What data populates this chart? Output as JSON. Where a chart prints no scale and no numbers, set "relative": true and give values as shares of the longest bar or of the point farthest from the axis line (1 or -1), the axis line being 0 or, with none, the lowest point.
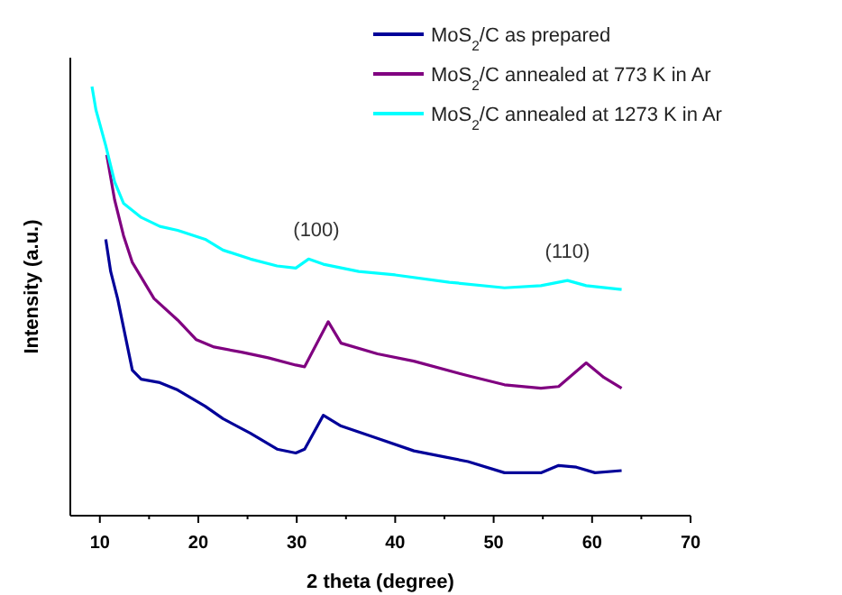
{
  "chart_data": {
    "type": "line",
    "relative": true,
    "xlabel": "2 theta (degree)",
    "ylabel": "Intensity (a.u.)",
    "xlim": [
      7,
      70
    ],
    "xticks": [
      10,
      20,
      30,
      40,
      50,
      60,
      70
    ],
    "legend": "top right",
    "marker": "none",
    "line_style": "solid",
    "tick_labels": "x",
    "annotations": [
      {
        "text": "(100)",
        "x": 32,
        "y": 0.6
      },
      {
        "text": "(110)",
        "x": 57.5,
        "y": 0.55
      }
    ],
    "series": [
      {
        "name": "MoS$_{2}$/C as prepared",
        "color": "#000099",
        "x": [
          10.6,
          11.1,
          11.8,
          13.3,
          14.2,
          16.1,
          17.9,
          20.7,
          22.5,
          25.3,
          28.0,
          29.9,
          30.8,
          32.7,
          34.5,
          38.2,
          41.9,
          47.4,
          51.1,
          54.8,
          56.6,
          58.4,
          60.3,
          63.0
        ],
        "values": [
          0.644,
          0.569,
          0.506,
          0.339,
          0.318,
          0.31,
          0.293,
          0.255,
          0.226,
          0.192,
          0.155,
          0.146,
          0.155,
          0.234,
          0.209,
          0.18,
          0.151,
          0.126,
          0.1,
          0.1,
          0.117,
          0.113,
          0.1,
          0.105
        ]
      },
      {
        "name": "MoS$_{2}$/C annealed at 773 K in Ar",
        "color": "#800080",
        "x": [
          10.7,
          11.5,
          12.4,
          13.3,
          15.5,
          17.9,
          19.8,
          21.6,
          24.4,
          27.1,
          29.9,
          30.8,
          33.2,
          34.5,
          38.2,
          41.9,
          47.4,
          51.1,
          54.8,
          56.6,
          59.4,
          61.2,
          63.0
        ],
        "values": [
          0.841,
          0.736,
          0.653,
          0.59,
          0.506,
          0.456,
          0.41,
          0.393,
          0.381,
          0.368,
          0.351,
          0.347,
          0.452,
          0.402,
          0.377,
          0.36,
          0.326,
          0.305,
          0.297,
          0.301,
          0.356,
          0.322,
          0.297
        ]
      },
      {
        "name": "MoS$_{2}$/C annealed at 1273 K in Ar",
        "color": "#00ffff",
        "x": [
          9.2,
          9.6,
          10.6,
          11.5,
          12.4,
          14.2,
          16.1,
          17.9,
          20.7,
          22.5,
          25.3,
          28.0,
          29.9,
          31.2,
          32.7,
          36.3,
          40.0,
          45.5,
          51.1,
          54.8,
          57.5,
          59.4,
          63.0
        ],
        "values": [
          1.0,
          0.946,
          0.862,
          0.778,
          0.728,
          0.695,
          0.674,
          0.665,
          0.644,
          0.619,
          0.598,
          0.582,
          0.577,
          0.598,
          0.586,
          0.569,
          0.561,
          0.544,
          0.531,
          0.536,
          0.548,
          0.536,
          0.527
        ]
      }
    ]
  }
}
